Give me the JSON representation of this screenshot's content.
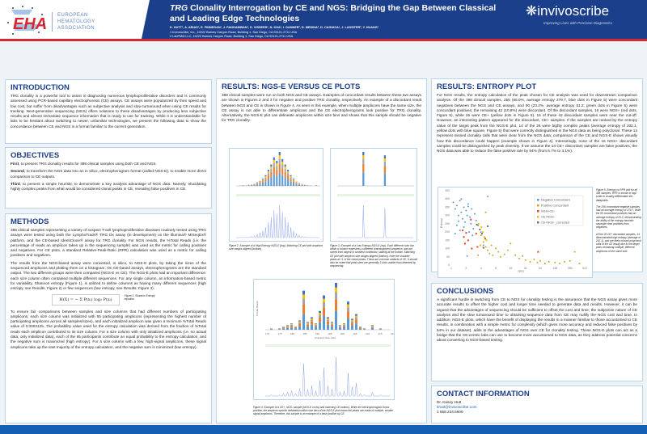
{
  "header": {
    "org_logo": "EHA",
    "org_name": [
      "EUROPEAN",
      "HEMATOLOGY",
      "ASSOCIATION"
    ],
    "title_italic": "TRG",
    "title_rest": " Clonality Interrogation by CE and NGS: Bridging the Gap Between Classical and Leading Edge Technologies",
    "authors": "K. HUTT¹, A. ARIAS¹, E. FINNEGAN¹, J. PANGANIBAN¹, D. VISSERS¹, N. KHA¹, I. DANNER², D. MEDINA², D. CAGUIOA¹, J. LASSITER², Y. HUANG¹",
    "affiliation_1": "1 Invivoscribe, Inc., 10222 Barnes Canyon Road, Building 1, San Diego, CA 92121-2711 USA",
    "affiliation_2": "2 LabPMM LLC, 10222 Barnes Canyon Road, Building 1, San Diego, CA 92121-2711 USA",
    "brand": "invivoscribe",
    "brand_tagline": "Improving Lives with Precision Diagnostics"
  },
  "intro": {
    "heading": "INTRODUCTION",
    "text": "TRG clonality is a powerful tool to assist in diagnosing numerous lymphoproliferative disorders and is commonly assessed using PCR-based capillary electrophoresis (CE) assays. CE assays were popularized by their speed and low cost, but suffer from disadvantages such as subjective analysis and slow turnaround when using CE results for tracking. Next-generation sequencing (NGS) offers solutions to these disadvantages by producing less subjective results and almost immediate sequence information that is ready to use for tracking. While it is understandable for labs to be hesitant about switching to newer, unfamiliar technologies, we present the following data to show the concordance between CE and NGS in a format familiar to the current generation."
  },
  "objectives": {
    "heading": "OBJECTIVES",
    "items": [
      {
        "lead": "First",
        "text": ", to present TRG clonality results for 388 clinical samples using both CE and NGS."
      },
      {
        "lead": "Second",
        "text": ", to transform the NGS data into an in silico, electropherogram format (called NGS-E), to enable more direct comparison to CE outputs."
      },
      {
        "lead": "Third",
        "text": ", to present a simple heuristic to demonstrate a key analysis advantage of NGS data. Namely, elucidating highly complex peaks from what would be considered clonal peaks in CE, revealing false positives in CE."
      }
    ]
  },
  "methods": {
    "heading": "METHODS",
    "p1": "388 clinical samples representing a variety of suspect T-cell lymphoproliferative diseases routinely tested using TRG assays were tested using both the LymphoTrack® TRG Dx assay (in development) on the Illumina® MiSeqDx® platform, and the CE-based IdentiClone® assay for TRG clonality. For NGS results, the %Total Reads (i.e. the percentage of reads an amplicon takes up in the sequencing sample) was used as the metric for calling positives and negatives. For CE plots, a standard Relative-Peak-Ratio (RPR) calculation was used as a metric for calling positives and negatives.",
    "p2": "The results from the NGS-based assay were converted, in silico, to NGS-E plots, by taking the sizes of the sequenced amplicons and plotting them on a histogram. On CE-based assays, electropherograms are the standard output. The two different groups were then compared (NGS-E vs CE). The NGS-E plots had an important difference: each size column often contained multiple different sequences. For any single column, an information-based metric for variability, Shannon entropy (Figure 1), is utilized to define columns as having many different sequences (high entropy, see Results: Figure 2) or few sequences (low entropy, see Results: Figure 3).",
    "equation": "H(X) = − Σ P(xᵢ) log₂ P(xᵢ)",
    "fig1_caption": "Figure 1. Shannon Entropy equation",
    "p3": "To ensure fair comparisons between samples and size columns that had different numbers of participating amplicons, each size column was initialized with 65 participating amplicons (representing the highest number of participating amplicons across all samples/sizes), and each initialized amplicon was given a minimum %Total Reads value of 0.0003125. The probability value used for the entropy calculation was derived from the fraction of %Total reads each amplicon contributed to its size column. For a size column with only initialized amplicons (i.e. no actual data, only initialized data), each of the 65 participants contribute an equal probability to the entropy calculation, and the negative sum is maximized (high entropy). For a size column with a few, high-signal amplicons, these signal amplicons take up the vast majority of the entropy calculation, and the negative sum is minimized (low entropy)."
  },
  "results_plots": {
    "heading": "RESULTS: NGS-E VERSUS CE PLOTS",
    "text": "388 clinical samples were run on both NGS and CE assays. Examples of concordant results between these two assays are shown in Figures 2 and 3 for negative and positive TRG clonality, respectively. An example of a discordant result between NGS and CE is shown in Figure 4. As seen in this example, when multiple amplicons have the same size, the CE assay is not able to differentiate amplicons and the CE electropherograms look positive for TRG clonality. Alternatively, the NGS-E plot can delineate amplicons within size bins and shows that this sample should be negative for TRG clonality.",
    "fig2_caption": "Figure 2. Example of a High Entropy NGS-E (top). Matching CE plot with amplicon size ranges aligned (bottom).",
    "fig3_caption": "Figure 3. Example of a Low Entropy NGS-E (top). Each different color bar within a column represents a different rearrangement sequence, and are sorted from largest to smallest contributor, starting at the bottom. Matching CE plot with amplicon size ranges aligned (bottom). Note the shoulder peaks at +1 of the clonal peaks. These are common artifacts of CE. It should also be noted that peak sizes are generally 3-4nts smaller than detected by sequencing.",
    "fig4_caption": "Figure 4. Example of a CE+, NGS- sample (NGS-E on top and matching CE bottom). While the electropherogram looks positive, the amplicon specific delineation within size bins of the NGS-E plot shows the peaks are made of multiple, smaller signal amplicons. Therefore, this sample is an example of a false positive by CE.",
    "fig4_xlabel": "Amplicon Size (nts)",
    "fig4_ylabel": "%Total Reads"
  },
  "entropy": {
    "heading": "RESULTS: ENTROPY PLOT",
    "text": "For NGS results, the entropy calculation of the peak chosen for CE analysis was used for downstream comparison analysis. Of the 388 clinical samples, 256 (66.0%, average entropy 279.7, blue dots in Figure 5) were concordant negatives between the NGS and CE assays, and 90 (23.2%, average entropy 51.2, green dots in Figure 5) were concordant positives; the remaining 42 (10.8%) were discordant. Of the discordant samples, 16 were NGS+ (red dots, Figure 5), while 26 were CE+ (yellow dots in Figure 5). 16 of these 42 discordant samples were near the cut-off. However, an interesting pattern appeared for the discordant, CE+ samples. If the samples are ranked by the entropy value of the target peak from the NGS-E plot, 14 of the 26 were highly complex peaks (average entropy of 202.1, yellow dots with blue square, Figure 5) that were correctly distinguished in the NGS data as being polyclonal. These 14 represent missed clonality calls that were clear from the NGS data; comparison of the CE and NGS-E shows visually how this discordance could happen (example shown in Figure 4). Interestingly, none of the 16 NGS+ discordant samples could be distinguished by peak diversity. If we assume the 14 CE+ discordant samples are false positives, the NGS data was able to reduce the false positive rate by 54% (from 6.7% to 3.1%).",
    "fig5_caption_1": "Figure 5. Entropy vs RPR plot for all 388 samples. RPR is shown in log2 scale to visually differentiate the datapoints.",
    "fig5_caption_2": "The 256 concordant negative samples had an average entropy of 279.7, while the 90 concordant positives had an average entropy of 51.2, demonstrating the ability of the entropy heuristic separate clear positives from negatives.",
    "fig5_caption_3": "Of the 26 CE+ discordant samples, 14 demonstrated high entropy (average of 202.1), and are likely missed polyclonal calls in the CE assay due to the target peak containing multiple, different amplicons of the same size."
  },
  "conclusions": {
    "heading": "CONCLUSIONS",
    "text": "A significant hurdle in switching from CE to NGS for clonality testing is the assurance that the NGS assay gives more accurate results to offset the higher cost and longer time needed to generate data and results. However, it can be argued that the advantages of sequencing should be sufficient to offset the cost and time; the subjective nature of CE analysis and the slow turnaround time to obtaining sequence data from CE may nullify the NGS cost and time. In addition, NGS-E plots, which have the benefit of displaying the results in a manner familiar to those accustomed to CE results, in combination with a simple metric for complexity (which gives more accuracy and reduced false positives by 54% in our dataset), adds to the advantages of NGS over CE for clonality testing. These NGS-E plots can act as a bridge that the CE-centric labs can use to become more accustomed to NGS data, as they address potential concerns about converting to NGS-based testing."
  },
  "contact": {
    "heading": "CONTACT INFORMATION",
    "name": "Dr. Kasey Hutt",
    "email": "khutt@invivoscribe.com",
    "phone": "1 858.224.6600"
  },
  "colors": {
    "navy": "#1b3f8b",
    "red": "#d8282f",
    "blue_footer": "#1560b5",
    "neg": "#5b9bd5",
    "pos": "#c9a227",
    "ngs_pos": "#e8401c",
    "ce_pos": "#f2c500",
    "ce_corrected": "#7f6a4a"
  },
  "chart_data": {
    "type": "scatter",
    "xlabel": "RPR",
    "ylabel": "Entropy",
    "x_scale": "log2",
    "xlim": [
      1,
      512
    ],
    "ylim": [
      0,
      450
    ],
    "xticks": [
      "1",
      "2",
      "4",
      "8",
      "16",
      "32",
      "64",
      "128",
      "256",
      "512"
    ],
    "yticks": [
      "0",
      "50",
      "100",
      "150",
      "200",
      "250",
      "300",
      "350",
      "400",
      "450"
    ],
    "legend_position": "top-right",
    "series": [
      {
        "name": "Negative Concordant",
        "color": "#5b9bd5",
        "points": [
          [
            1.1,
            380
          ],
          [
            1.2,
            340
          ],
          [
            1.3,
            360
          ],
          [
            1.4,
            300
          ],
          [
            1.5,
            390
          ],
          [
            1.6,
            320
          ],
          [
            1.7,
            280
          ],
          [
            1.8,
            350
          ],
          [
            1.9,
            260
          ],
          [
            2,
            330
          ],
          [
            2.1,
            300
          ],
          [
            2.2,
            370
          ],
          [
            2.4,
            290
          ],
          [
            2.5,
            250
          ],
          [
            2.6,
            340
          ],
          [
            2.8,
            220
          ],
          [
            3,
            310
          ],
          [
            3.2,
            270
          ],
          [
            1.3,
            240
          ],
          [
            1.5,
            210
          ],
          [
            1.8,
            230
          ],
          [
            2.3,
            200
          ],
          [
            1.2,
            190
          ],
          [
            2.7,
            180
          ],
          [
            3.5,
            240
          ],
          [
            4,
            200
          ],
          [
            1.6,
            400
          ],
          [
            2.2,
            355
          ],
          [
            1.4,
            265
          ],
          [
            5.5,
            415
          ],
          [
            2.1,
            55
          ],
          [
            4.5,
            120
          ]
        ]
      },
      {
        "name": "Positive Concordant",
        "color": "#c9a227",
        "points": [
          [
            4,
            180
          ],
          [
            4.5,
            140
          ],
          [
            5,
            110
          ],
          [
            5.5,
            90
          ],
          [
            6,
            70
          ],
          [
            7,
            60
          ],
          [
            8,
            100
          ],
          [
            9,
            80
          ],
          [
            10,
            50
          ],
          [
            12,
            65
          ],
          [
            14,
            90
          ],
          [
            16,
            130
          ],
          [
            20,
            60
          ],
          [
            24,
            40
          ],
          [
            28,
            55
          ],
          [
            32,
            30
          ],
          [
            40,
            20
          ],
          [
            48,
            35
          ],
          [
            56,
            15
          ],
          [
            64,
            25
          ],
          [
            80,
            10
          ],
          [
            96,
            20
          ],
          [
            128,
            15
          ],
          [
            160,
            10
          ],
          [
            200,
            20
          ],
          [
            256,
            25
          ],
          [
            320,
            80
          ],
          [
            400,
            10
          ],
          [
            3.5,
            60
          ],
          [
            6.5,
            120
          ],
          [
            5,
            320
          ]
        ]
      },
      {
        "name": "NGS+CE-",
        "color": "#e8401c",
        "points": [
          [
            1.7,
            210
          ],
          [
            1.8,
            170
          ],
          [
            1.9,
            130
          ],
          [
            2.2,
            150
          ],
          [
            2.5,
            275
          ],
          [
            2.6,
            100
          ],
          [
            3.2,
            190
          ],
          [
            3.4,
            110
          ],
          [
            58,
            80
          ],
          [
            2,
            195
          ]
        ]
      },
      {
        "name": "CE+NGS-",
        "color": "#f2c500",
        "points": [
          [
            3.6,
            250
          ],
          [
            4.1,
            230
          ],
          [
            4.4,
            200
          ],
          [
            4.7,
            170
          ],
          [
            5.2,
            150
          ],
          [
            3.9,
            120
          ]
        ]
      },
      {
        "name": "CE+NGS-_corrected",
        "color": "#7f6a4a",
        "points": [
          [
            3.3,
            245
          ],
          [
            3.8,
            215
          ],
          [
            4.2,
            190
          ],
          [
            4.9,
            160
          ],
          [
            5.5,
            235
          ],
          [
            4.5,
            105
          ]
        ]
      }
    ]
  },
  "figure_bars": {
    "fig2": [
      0,
      1,
      2,
      1,
      3,
      4,
      6,
      10,
      14,
      20,
      30,
      45,
      60,
      80,
      70,
      95,
      75,
      60,
      45,
      30,
      20,
      12,
      8,
      5,
      3,
      2,
      1,
      0,
      2,
      0
    ],
    "fig3": [
      0,
      0,
      0,
      0,
      0,
      0,
      0,
      0,
      100,
      0,
      0,
      0,
      0,
      0,
      0,
      90,
      0,
      0,
      0,
      0,
      0,
      0,
      0,
      0,
      0
    ],
    "fig4": [
      0,
      1,
      0,
      1,
      2,
      3,
      4,
      2,
      6,
      25,
      5,
      8,
      4,
      12,
      22,
      8,
      5,
      30,
      3,
      4,
      18,
      7,
      10,
      2,
      1,
      0,
      3,
      0,
      1,
      0,
      0
    ],
    "fig4_ticks": [
      "170",
      "175",
      "180",
      "185",
      "190",
      "195",
      "200",
      "205",
      "210",
      "215",
      "220"
    ]
  }
}
